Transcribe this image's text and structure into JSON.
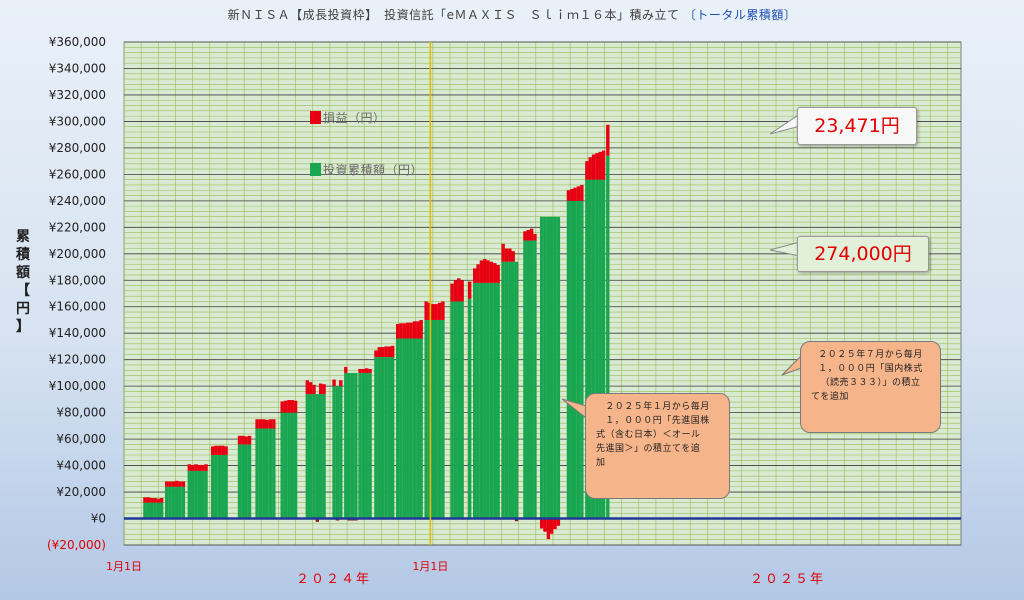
{
  "title": {
    "main": "新ＮＩＳＡ【成長投資枠】　投資信託「eＭＡＸＩＳ　Ｓｌｉｍ１６本」積み立て",
    "suffix": "〔トータル累積額〕"
  },
  "y_axis_label": [
    "累",
    "積",
    "額",
    "【",
    "円",
    "】"
  ],
  "legend": {
    "profit_label": "損益（円）",
    "invest_label": "投資累積額（円）"
  },
  "callouts": {
    "profit_value": "23,471円",
    "invest_value": "274,000円"
  },
  "notes": {
    "note1": [
      "２０２５年１月から毎月",
      "１，０００円「先進国株",
      "式（含む日本）＜オール",
      "先進国＞」の積立てを追",
      "加"
    ],
    "note2": [
      "２０２５年７月から毎月",
      "１，０００円「国内株式",
      "（読売３３３）」の積立",
      "てを追加"
    ]
  },
  "colors": {
    "invest": "#1aa650",
    "profit": "#e60012",
    "loss_dark": "#8b1a1a",
    "plot_bg": "#d9ead3",
    "minor_grid": "#9bbb59",
    "major_grid": "#404040",
    "year_line": "#e6b800",
    "zero_line": "#1f3a93",
    "callout_profit_bg": "#f8f8f8",
    "callout_invest_bg": "#e2efd9"
  },
  "chart_data": {
    "type": "bar",
    "stacked": true,
    "title": "新ＮＩＳＡ【成長投資枠】　投資信託「eＭＡＸＩＳ　Ｓｌｉｍ１６本」積み立て　〔トータル累積額〕",
    "ylabel": "累積額【円】",
    "ylim": [
      -20000,
      360000
    ],
    "y_ticks": [
      -20000,
      0,
      20000,
      40000,
      60000,
      80000,
      100000,
      120000,
      140000,
      160000,
      180000,
      200000,
      220000,
      240000,
      260000,
      280000,
      300000,
      320000,
      340000,
      360000
    ],
    "y_tick_labels": [
      "(¥20,000)",
      "¥0",
      "¥20,000",
      "¥40,000",
      "¥60,000",
      "¥80,000",
      "¥100,000",
      "¥120,000",
      "¥140,000",
      "¥160,000",
      "¥180,000",
      "¥200,000",
      "¥220,000",
      "¥240,000",
      "¥260,000",
      "¥280,000",
      "¥300,000",
      "¥320,000",
      "¥340,000",
      "¥360,000"
    ],
    "x_tick_labels": [
      "1月1日",
      "1月1日"
    ],
    "x_year_labels": [
      "２０２４年",
      "２０２５年"
    ],
    "x_range_days": [
      0,
      1000
    ],
    "x_tick_days": [
      0,
      366
    ],
    "grid": true,
    "series": [
      {
        "name": "投資累積額（円）",
        "color": "#1aa650",
        "points": [
          [
            25,
            12000
          ],
          [
            29,
            12000
          ],
          [
            33,
            12000
          ],
          [
            37,
            12000
          ],
          [
            41,
            12000
          ],
          [
            45,
            12000
          ],
          [
            51,
            24000
          ],
          [
            55,
            24000
          ],
          [
            59,
            24000
          ],
          [
            63,
            24000
          ],
          [
            67,
            24000
          ],
          [
            71,
            24000
          ],
          [
            78,
            36000
          ],
          [
            82,
            36000
          ],
          [
            86,
            36000
          ],
          [
            90,
            36000
          ],
          [
            94,
            36000
          ],
          [
            98,
            36000
          ],
          [
            106,
            48000
          ],
          [
            110,
            48000
          ],
          [
            114,
            48000
          ],
          [
            118,
            48000
          ],
          [
            122,
            48000
          ],
          [
            138,
            56000
          ],
          [
            142,
            56000
          ],
          [
            146,
            56000
          ],
          [
            150,
            56000
          ],
          [
            159,
            68000
          ],
          [
            163,
            68000
          ],
          [
            167,
            68000
          ],
          [
            171,
            68000
          ],
          [
            175,
            68000
          ],
          [
            179,
            68000
          ],
          [
            189,
            80000
          ],
          [
            193,
            80000
          ],
          [
            197,
            80000
          ],
          [
            201,
            80000
          ],
          [
            205,
            80000
          ],
          [
            219,
            94000
          ],
          [
            223,
            94000
          ],
          [
            227,
            94000
          ],
          [
            231,
            94000
          ],
          [
            235,
            94000
          ],
          [
            239,
            94000
          ],
          [
            251,
            100000
          ],
          [
            255,
            100000
          ],
          [
            259,
            100000
          ],
          [
            265,
            110000
          ],
          [
            269,
            110000
          ],
          [
            273,
            110000
          ],
          [
            277,
            110000
          ],
          [
            282,
            110000
          ],
          [
            286,
            110000
          ],
          [
            290,
            110000
          ],
          [
            294,
            110000
          ],
          [
            301,
            122000
          ],
          [
            305,
            122000
          ],
          [
            309,
            122000
          ],
          [
            313,
            122000
          ],
          [
            317,
            122000
          ],
          [
            321,
            122000
          ],
          [
            327,
            136000
          ],
          [
            331,
            136000
          ],
          [
            335,
            136000
          ],
          [
            339,
            136000
          ],
          [
            343,
            136000
          ],
          [
            347,
            136000
          ],
          [
            351,
            136000
          ],
          [
            355,
            136000
          ],
          [
            361,
            150000
          ],
          [
            365,
            150000
          ],
          [
            369,
            150000
          ],
          [
            373,
            150000
          ],
          [
            377,
            150000
          ],
          [
            381,
            150000
          ],
          [
            392,
            164000
          ],
          [
            396,
            164000
          ],
          [
            400,
            164000
          ],
          [
            404,
            164000
          ],
          [
            413,
            166000
          ],
          [
            419,
            178000
          ],
          [
            423,
            178000
          ],
          [
            427,
            178000
          ],
          [
            431,
            178000
          ],
          [
            435,
            178000
          ],
          [
            439,
            178000
          ],
          [
            443,
            178000
          ],
          [
            447,
            178000
          ],
          [
            453,
            194000
          ],
          [
            457,
            194000
          ],
          [
            461,
            194000
          ],
          [
            465,
            194000
          ],
          [
            469,
            194000
          ],
          [
            479,
            210000
          ],
          [
            483,
            210000
          ],
          [
            487,
            210000
          ],
          [
            491,
            210000
          ],
          [
            499,
            228000
          ],
          [
            503,
            228000
          ],
          [
            507,
            228000
          ],
          [
            511,
            228000
          ],
          [
            515,
            228000
          ],
          [
            519,
            228000
          ],
          [
            531,
            240000
          ],
          [
            535,
            240000
          ],
          [
            539,
            240000
          ],
          [
            543,
            240000
          ],
          [
            547,
            240000
          ],
          [
            553,
            256000
          ],
          [
            557,
            256000
          ],
          [
            561,
            256000
          ],
          [
            565,
            256000
          ],
          [
            569,
            256000
          ],
          [
            573,
            256000
          ],
          [
            578,
            274000
          ]
        ]
      },
      {
        "name": "損益（円）",
        "color": "#e60012",
        "points": [
          [
            25,
            4000
          ],
          [
            29,
            4000
          ],
          [
            33,
            3500
          ],
          [
            37,
            3500
          ],
          [
            41,
            3000
          ],
          [
            45,
            3500
          ],
          [
            51,
            4000
          ],
          [
            55,
            4000
          ],
          [
            59,
            4000
          ],
          [
            63,
            4500
          ],
          [
            67,
            4000
          ],
          [
            71,
            4000
          ],
          [
            78,
            5000
          ],
          [
            82,
            4500
          ],
          [
            86,
            5000
          ],
          [
            90,
            4500
          ],
          [
            94,
            4500
          ],
          [
            98,
            5000
          ],
          [
            106,
            6500
          ],
          [
            110,
            7000
          ],
          [
            114,
            7000
          ],
          [
            118,
            7000
          ],
          [
            122,
            6500
          ],
          [
            138,
            6500
          ],
          [
            142,
            6500
          ],
          [
            146,
            6000
          ],
          [
            150,
            6500
          ],
          [
            159,
            7000
          ],
          [
            163,
            7000
          ],
          [
            167,
            7000
          ],
          [
            171,
            6500
          ],
          [
            175,
            7000
          ],
          [
            179,
            7000
          ],
          [
            189,
            8500
          ],
          [
            193,
            9000
          ],
          [
            197,
            9500
          ],
          [
            201,
            9500
          ],
          [
            205,
            9000
          ],
          [
            219,
            10500
          ],
          [
            223,
            9000
          ],
          [
            227,
            7000
          ],
          [
            231,
            -2500
          ],
          [
            235,
            8000
          ],
          [
            239,
            7500
          ],
          [
            251,
            5000
          ],
          [
            255,
            -1500
          ],
          [
            259,
            4500
          ],
          [
            265,
            4500
          ],
          [
            269,
            -1500
          ],
          [
            273,
            -1500
          ],
          [
            277,
            -1500
          ],
          [
            282,
            3000
          ],
          [
            286,
            3000
          ],
          [
            290,
            3500
          ],
          [
            294,
            3000
          ],
          [
            301,
            5000
          ],
          [
            305,
            7500
          ],
          [
            309,
            7500
          ],
          [
            313,
            8000
          ],
          [
            317,
            8000
          ],
          [
            321,
            8500
          ],
          [
            327,
            11000
          ],
          [
            331,
            11500
          ],
          [
            335,
            11500
          ],
          [
            339,
            12000
          ],
          [
            343,
            12000
          ],
          [
            347,
            13000
          ],
          [
            351,
            13000
          ],
          [
            355,
            14000
          ],
          [
            361,
            14000
          ],
          [
            365,
            13000
          ],
          [
            369,
            12000
          ],
          [
            373,
            12000
          ],
          [
            377,
            13000
          ],
          [
            381,
            14000
          ],
          [
            392,
            13500
          ],
          [
            396,
            16000
          ],
          [
            400,
            17500
          ],
          [
            404,
            16000
          ],
          [
            413,
            13000
          ],
          [
            419,
            11000
          ],
          [
            423,
            14000
          ],
          [
            427,
            17000
          ],
          [
            431,
            18000
          ],
          [
            435,
            17000
          ],
          [
            439,
            16000
          ],
          [
            443,
            15000
          ],
          [
            447,
            13500
          ],
          [
            453,
            13500
          ],
          [
            457,
            10000
          ],
          [
            461,
            10000
          ],
          [
            465,
            8000
          ],
          [
            469,
            -2000
          ],
          [
            479,
            7000
          ],
          [
            483,
            8000
          ],
          [
            487,
            9000
          ],
          [
            491,
            5000
          ],
          [
            499,
            -7500
          ],
          [
            503,
            -10000
          ],
          [
            507,
            -15500
          ],
          [
            511,
            -11500
          ],
          [
            515,
            -8000
          ],
          [
            519,
            -5500
          ],
          [
            531,
            8000
          ],
          [
            535,
            9000
          ],
          [
            539,
            10000
          ],
          [
            543,
            11000
          ],
          [
            547,
            12000
          ],
          [
            553,
            14000
          ],
          [
            557,
            17000
          ],
          [
            561,
            19000
          ],
          [
            565,
            20000
          ],
          [
            569,
            21000
          ],
          [
            573,
            22000
          ],
          [
            578,
            23471
          ]
        ]
      }
    ]
  }
}
